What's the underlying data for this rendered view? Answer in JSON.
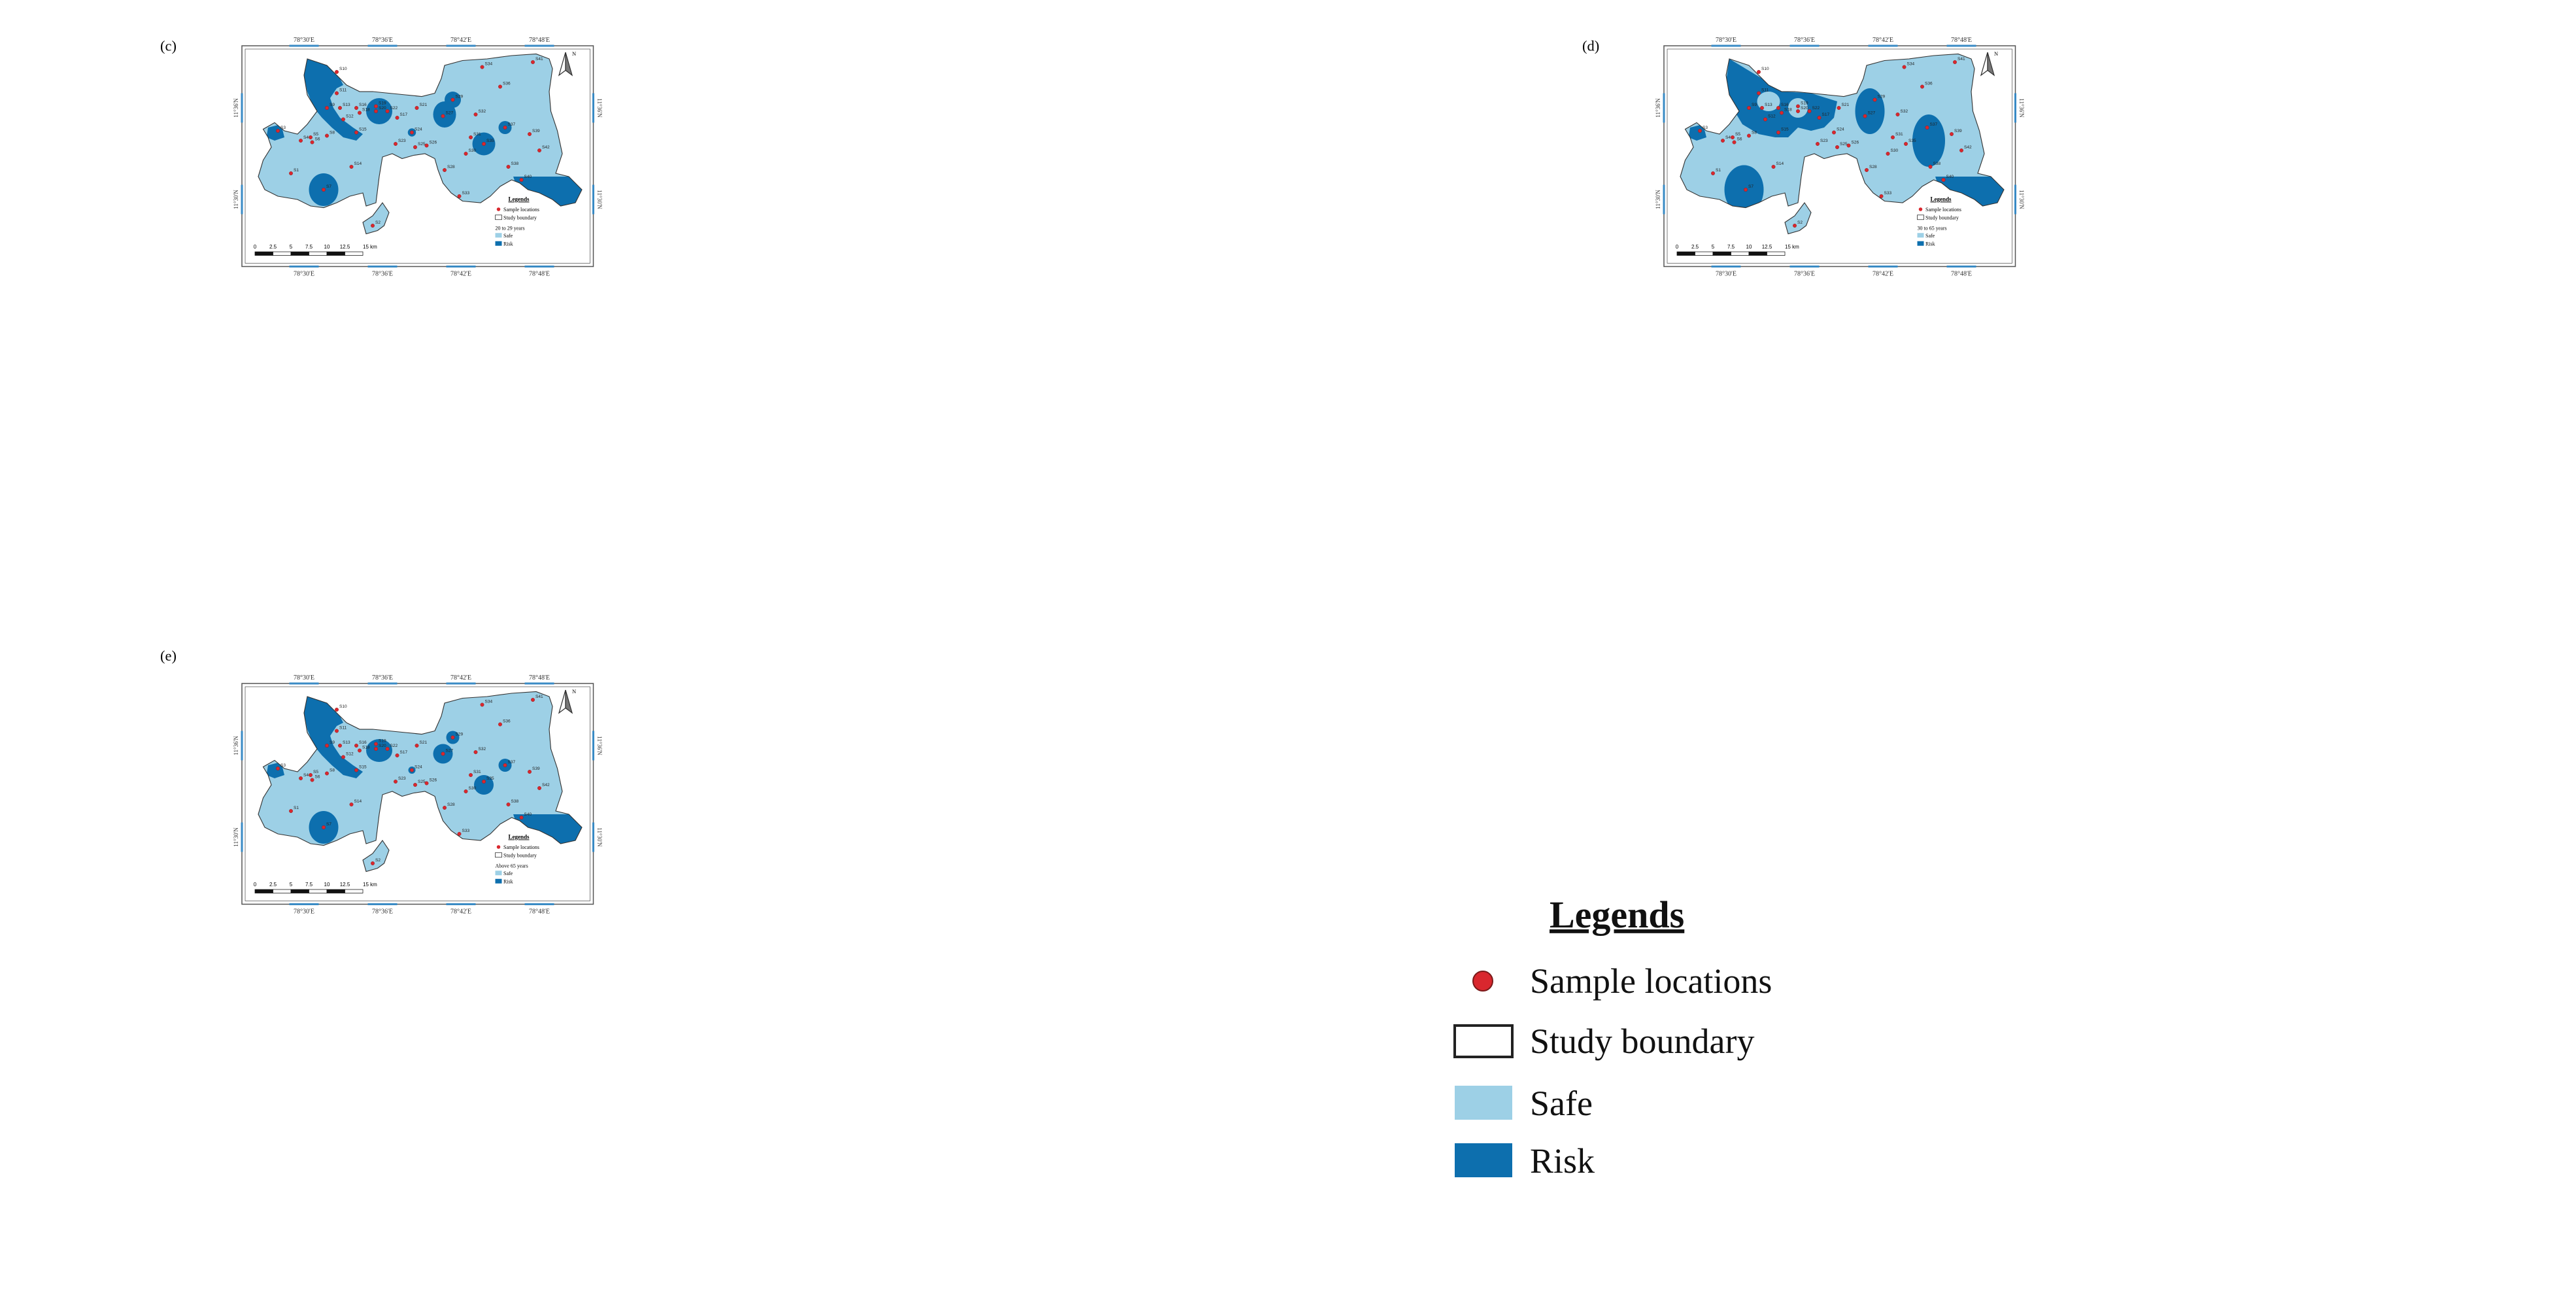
{
  "colors": {
    "safe": "#9dd0e6",
    "risk": "#0d6fae",
    "sample": "#d9272e",
    "boundary": "#333333"
  },
  "grid_labels": {
    "lon": [
      "78°30'E",
      "78°36'E",
      "78°42'E",
      "78°48'E"
    ],
    "lat": [
      "11°36'N",
      "11°30'N"
    ]
  },
  "north_label": "N",
  "scale_bar": {
    "labels": [
      "0",
      "2.5",
      "5",
      "7.5",
      "10",
      "12.5",
      "15 km"
    ]
  },
  "inset_legend": {
    "title": "Legends",
    "sample": "Sample locations",
    "boundary": "Study boundary",
    "safe": "Safe",
    "risk": "Risk"
  },
  "panels": [
    {
      "label": "(c)",
      "group": "20 to 29 years"
    },
    {
      "label": "(d)",
      "group": "30 to 65 years"
    },
    {
      "label": "(e)",
      "group": "Above 65 years"
    }
  ],
  "sites": [
    "S1",
    "S2",
    "S3",
    "S4",
    "S5",
    "S6",
    "S7",
    "S8",
    "S9",
    "S10",
    "S11",
    "S12",
    "S13",
    "S14",
    "S15",
    "S16",
    "S17",
    "S18",
    "S19",
    "S20",
    "S21",
    "S22",
    "S23",
    "S24",
    "S25",
    "S26",
    "S27",
    "S28",
    "S29",
    "S30",
    "S31",
    "S32",
    "S33",
    "S34",
    "S35",
    "S36",
    "S37",
    "S38",
    "S39",
    "S40",
    "S41",
    "S42"
  ],
  "main_legend": {
    "title": "Legends",
    "sample": "Sample locations",
    "boundary": "Study boundary",
    "safe": "Safe",
    "risk": "Risk"
  }
}
